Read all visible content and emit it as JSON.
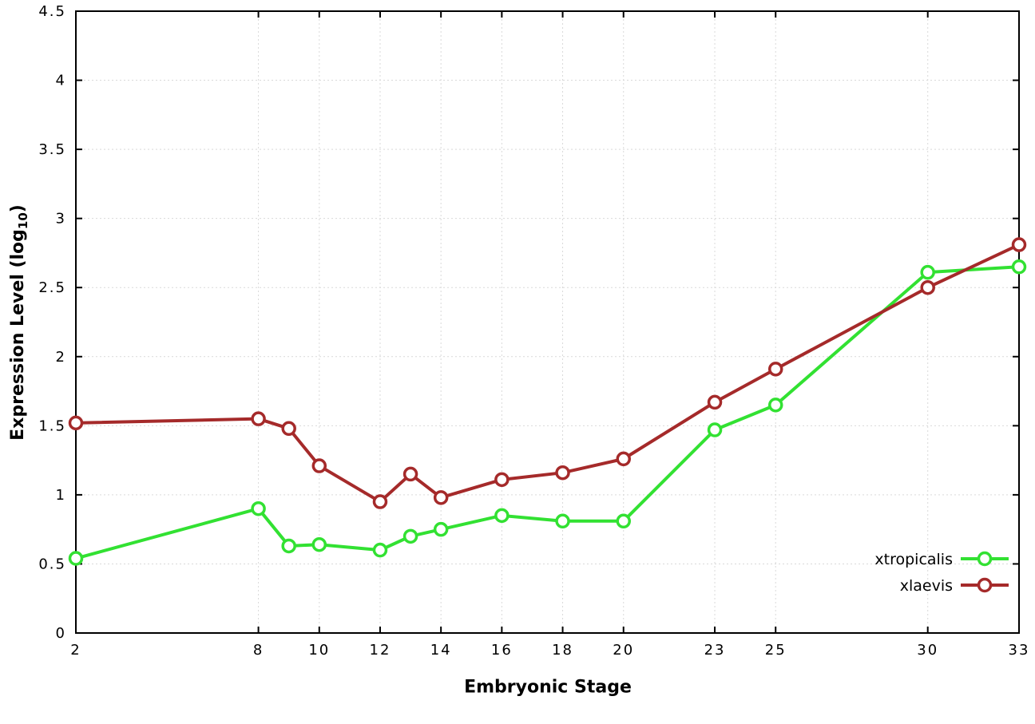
{
  "chart_data": {
    "type": "line",
    "xlabel": "Embryonic Stage",
    "ylabel": "Expression Level (log10)",
    "ylabel_pre": "Expression Level (log",
    "ylabel_sub": "10",
    "ylabel_post": ")",
    "xlim": [
      2,
      33
    ],
    "ylim": [
      0,
      4.5
    ],
    "xticks": [
      2,
      8,
      10,
      12,
      14,
      16,
      18,
      20,
      23,
      25,
      30,
      33
    ],
    "yticks": [
      0,
      0.5,
      1,
      1.5,
      2,
      2.5,
      3,
      3.5,
      4,
      4.5
    ],
    "grid": true,
    "grid_color": "#d9d9d9",
    "axis_color": "#000000",
    "legend_position": "bottom-right",
    "x": [
      2,
      8,
      9,
      10,
      12,
      13,
      14,
      16,
      18,
      20,
      23,
      25,
      30,
      33
    ],
    "series": [
      {
        "name": "xtropicalis",
        "color": "#32e132",
        "values": [
          0.54,
          0.9,
          0.63,
          0.64,
          0.6,
          0.7,
          0.75,
          0.85,
          0.81,
          0.81,
          1.47,
          1.65,
          2.61,
          2.65
        ]
      },
      {
        "name": "xlaevis",
        "color": "#a52a2a",
        "values": [
          1.52,
          1.55,
          1.48,
          1.21,
          0.95,
          1.15,
          0.98,
          1.11,
          1.16,
          1.26,
          1.67,
          1.91,
          2.5,
          2.81
        ]
      }
    ]
  }
}
